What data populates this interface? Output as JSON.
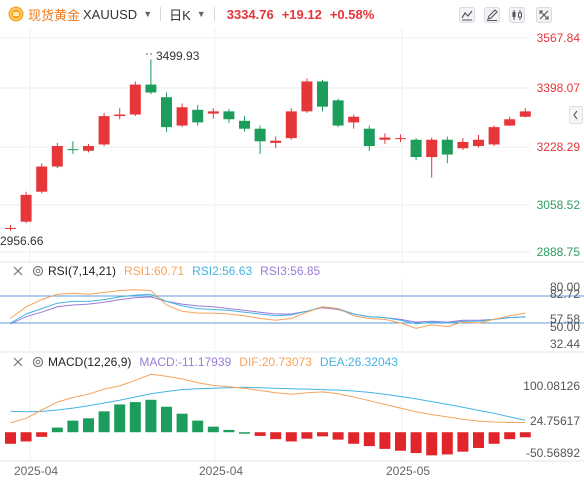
{
  "header": {
    "instrument_name": "现货黄金",
    "symbol": "XAUUSD",
    "period": "日K",
    "price": "3334.76",
    "change": "+19.12",
    "change_percent": "+0.58%",
    "brand_icon": "gold-coin-icon",
    "tool_icons": [
      "indicator-icon",
      "draw-icon",
      "chart-type-icon",
      "fullscreen-icon"
    ],
    "accent_color": "#f07a1e",
    "up_color": "#e5363a",
    "down_color": "#1c9d5c"
  },
  "main_chart": {
    "y_axis_labels": [
      "3567.84",
      "3398.07",
      "3228.29",
      "3058.52",
      "2888.75"
    ],
    "high_annotation": "3499.93",
    "low_annotation": "2956.66"
  },
  "x_axis_labels": [
    "2025-04",
    "2025-04",
    "2025-05"
  ],
  "rsi_panel": {
    "name": "RSI(7,14,21)",
    "rsi1_label": "RSI1:60.71",
    "rsi2_label": "RSI2:56.63",
    "rsi3_label": "RSI3:56.85",
    "y_axis_labels": [
      "80.00",
      "82.72",
      "57.58",
      "50.00",
      "32.44"
    ],
    "colors": {
      "rsi1": "#f4a45c",
      "rsi2": "#45b4e3",
      "rsi3": "#9a7cd6",
      "band": "#5f9bd8"
    }
  },
  "macd_panel": {
    "name": "MACD(12,26,9)",
    "macd_label": "MACD:-11.17939",
    "dif_label": "DIF:20.73073",
    "dea_label": "DEA:26.32043",
    "y_axis_labels": [
      "100.08126",
      "24.75617",
      "-50.56892"
    ],
    "colors": {
      "macd": "#9a7cd6",
      "dif": "#f4a45c",
      "dea": "#45b4e3"
    }
  },
  "chart_data": {
    "type": "candlestick",
    "ylim": [
      2888.75,
      3567.84
    ],
    "candles": [
      {
        "o": 2962,
        "h": 2975,
        "l": 2957,
        "c": 2965
      },
      {
        "o": 2985,
        "h": 3080,
        "l": 2980,
        "c": 3070
      },
      {
        "o": 3080,
        "h": 3170,
        "l": 3075,
        "c": 3160
      },
      {
        "o": 3160,
        "h": 3235,
        "l": 3155,
        "c": 3225
      },
      {
        "o": 3215,
        "h": 3240,
        "l": 3200,
        "c": 3212
      },
      {
        "o": 3210,
        "h": 3232,
        "l": 3205,
        "c": 3225
      },
      {
        "o": 3230,
        "h": 3330,
        "l": 3225,
        "c": 3320
      },
      {
        "o": 3320,
        "h": 3345,
        "l": 3310,
        "c": 3325
      },
      {
        "o": 3325,
        "h": 3430,
        "l": 3320,
        "c": 3420
      },
      {
        "o": 3420,
        "h": 3500,
        "l": 3390,
        "c": 3395
      },
      {
        "o": 3380,
        "h": 3395,
        "l": 3270,
        "c": 3285
      },
      {
        "o": 3290,
        "h": 3360,
        "l": 3285,
        "c": 3348
      },
      {
        "o": 3340,
        "h": 3355,
        "l": 3290,
        "c": 3300
      },
      {
        "o": 3328,
        "h": 3345,
        "l": 3312,
        "c": 3335
      },
      {
        "o": 3335,
        "h": 3342,
        "l": 3298,
        "c": 3310
      },
      {
        "o": 3305,
        "h": 3320,
        "l": 3270,
        "c": 3280
      },
      {
        "o": 3280,
        "h": 3290,
        "l": 3200,
        "c": 3240
      },
      {
        "o": 3235,
        "h": 3255,
        "l": 3218,
        "c": 3242
      },
      {
        "o": 3250,
        "h": 3345,
        "l": 3245,
        "c": 3335
      },
      {
        "o": 3335,
        "h": 3440,
        "l": 3330,
        "c": 3430
      },
      {
        "o": 3430,
        "h": 3435,
        "l": 3335,
        "c": 3350
      },
      {
        "o": 3370,
        "h": 3375,
        "l": 3285,
        "c": 3290
      },
      {
        "o": 3300,
        "h": 3325,
        "l": 3280,
        "c": 3318
      },
      {
        "o": 3280,
        "h": 3290,
        "l": 3210,
        "c": 3225
      },
      {
        "o": 3245,
        "h": 3265,
        "l": 3232,
        "c": 3252
      },
      {
        "o": 3250,
        "h": 3262,
        "l": 3238,
        "c": 3250
      },
      {
        "o": 3245,
        "h": 3250,
        "l": 3180,
        "c": 3190
      },
      {
        "o": 3190,
        "h": 3252,
        "l": 3125,
        "c": 3245
      },
      {
        "o": 3245,
        "h": 3255,
        "l": 3170,
        "c": 3198
      },
      {
        "o": 3218,
        "h": 3250,
        "l": 3212,
        "c": 3238
      },
      {
        "o": 3225,
        "h": 3260,
        "l": 3220,
        "c": 3245
      },
      {
        "o": 3230,
        "h": 3290,
        "l": 3225,
        "c": 3285
      },
      {
        "o": 3290,
        "h": 3318,
        "l": 3288,
        "c": 3310
      },
      {
        "o": 3318,
        "h": 3345,
        "l": 3316,
        "c": 3335
      }
    ],
    "rsi_ylim": [
      20,
      100
    ],
    "rsi_levels": [
      80,
      50
    ],
    "rsi1": [
      55,
      68,
      76,
      82,
      83,
      82,
      84,
      86,
      87,
      86,
      70,
      63,
      61,
      61,
      60,
      58,
      55,
      53,
      55,
      62,
      68,
      66,
      58,
      55,
      54,
      50,
      44,
      48,
      46,
      51,
      50,
      54,
      58,
      61
    ],
    "rsi2": [
      50,
      60,
      66,
      72,
      74,
      74,
      76,
      79,
      81,
      82,
      74,
      69,
      66,
      65,
      64,
      62,
      60,
      58,
      59,
      63,
      68,
      66,
      60,
      57,
      56,
      53,
      49,
      51,
      50,
      52,
      52,
      54,
      56,
      57
    ],
    "rsi3": [
      49,
      57,
      62,
      68,
      70,
      71,
      73,
      76,
      78,
      79,
      74,
      71,
      69,
      68,
      66,
      64,
      62,
      60,
      60,
      63,
      67,
      65,
      60,
      57,
      56,
      54,
      51,
      52,
      51,
      53,
      53,
      54,
      56,
      57
    ],
    "macd_ylim": [
      -60,
      130
    ],
    "dif": [
      20,
      30,
      48,
      65,
      75,
      82,
      93,
      100,
      112,
      125,
      121,
      115,
      107,
      101,
      98,
      95,
      90,
      85,
      82,
      85,
      87,
      83,
      76,
      68,
      60,
      52,
      44,
      38,
      33,
      28,
      24,
      22,
      21,
      21
    ],
    "dea": [
      45,
      44,
      45,
      48,
      52,
      57,
      63,
      69,
      76,
      83,
      88,
      92,
      94,
      95,
      96,
      97,
      96,
      95,
      94,
      93,
      92,
      91,
      89,
      86,
      82,
      77,
      72,
      66,
      60,
      54,
      47,
      41,
      33,
      26
    ],
    "macd": [
      -25,
      -20,
      -10,
      10,
      25,
      30,
      45,
      60,
      65,
      70,
      55,
      40,
      25,
      12,
      5,
      0,
      -8,
      -15,
      -20,
      -14,
      -9,
      -16,
      -25,
      -30,
      -36,
      -40,
      -45,
      -50,
      -48,
      -42,
      -34,
      -25,
      -15,
      -11
    ]
  }
}
